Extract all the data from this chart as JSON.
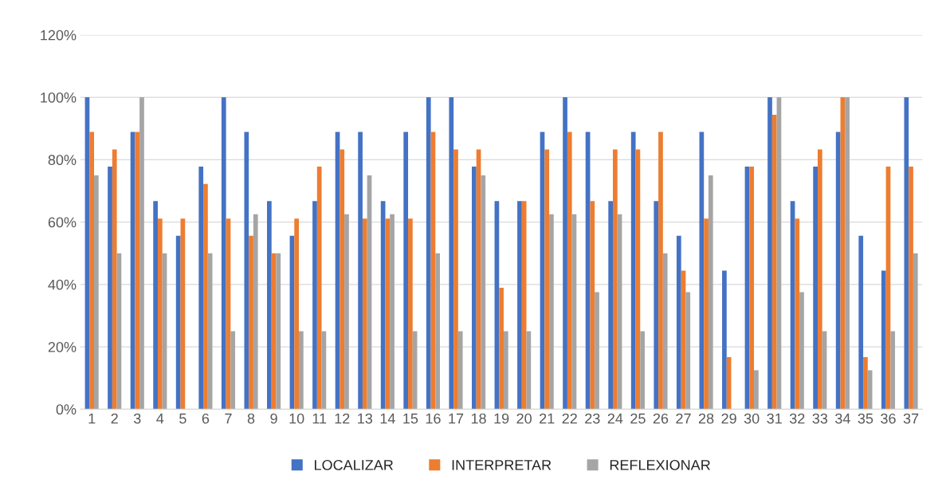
{
  "chart_data": {
    "type": "bar",
    "categories": [
      "1",
      "2",
      "3",
      "4",
      "5",
      "6",
      "7",
      "8",
      "9",
      "10",
      "11",
      "12",
      "13",
      "14",
      "15",
      "16",
      "17",
      "18",
      "19",
      "20",
      "21",
      "22",
      "23",
      "24",
      "25",
      "26",
      "27",
      "28",
      "29",
      "30",
      "31",
      "32",
      "33",
      "34",
      "35",
      "36",
      "37"
    ],
    "series": [
      {
        "name": "LOCALIZAR",
        "color": "#4472c4",
        "values": [
          100,
          77.8,
          88.9,
          66.7,
          55.6,
          77.8,
          100,
          88.9,
          66.7,
          55.6,
          66.7,
          88.9,
          88.9,
          66.7,
          88.9,
          100,
          100,
          77.8,
          66.7,
          66.7,
          88.9,
          100,
          88.9,
          66.7,
          88.9,
          66.7,
          55.6,
          88.9,
          44.4,
          77.8,
          100,
          66.7,
          77.8,
          88.9,
          55.6,
          44.4,
          100
        ]
      },
      {
        "name": "INTERPRETAR",
        "color": "#ed7d31",
        "values": [
          88.9,
          83.3,
          88.9,
          61.1,
          61.1,
          72.2,
          61.1,
          55.6,
          50,
          61.1,
          77.8,
          83.3,
          61.1,
          61.1,
          61.1,
          88.9,
          83.3,
          83.3,
          38.9,
          66.7,
          83.3,
          88.9,
          66.7,
          83.3,
          83.3,
          88.9,
          44.4,
          61.1,
          16.7,
          77.8,
          94.4,
          61.1,
          83.3,
          100,
          16.7,
          77.8,
          77.8
        ]
      },
      {
        "name": "REFLEXIONAR",
        "color": "#a5a5a5",
        "values": [
          75,
          50,
          100,
          50,
          0,
          50,
          25,
          62.5,
          50,
          25,
          25,
          62.5,
          75,
          62.5,
          25,
          50,
          25,
          75,
          25,
          25,
          62.5,
          62.5,
          37.5,
          62.5,
          25,
          50,
          37.5,
          75,
          0,
          12.5,
          100,
          37.5,
          25,
          100,
          12.5,
          25,
          50
        ]
      }
    ],
    "ylim": [
      0,
      120
    ],
    "yticks": [
      {
        "value": 0,
        "label": "0%"
      },
      {
        "value": 20,
        "label": "20%"
      },
      {
        "value": 40,
        "label": "40%"
      },
      {
        "value": 60,
        "label": "60%"
      },
      {
        "value": 80,
        "label": "80%"
      },
      {
        "value": 100,
        "label": "100%"
      },
      {
        "value": 120,
        "label": "120%"
      }
    ],
    "grid": "y",
    "legend": "bottom"
  }
}
